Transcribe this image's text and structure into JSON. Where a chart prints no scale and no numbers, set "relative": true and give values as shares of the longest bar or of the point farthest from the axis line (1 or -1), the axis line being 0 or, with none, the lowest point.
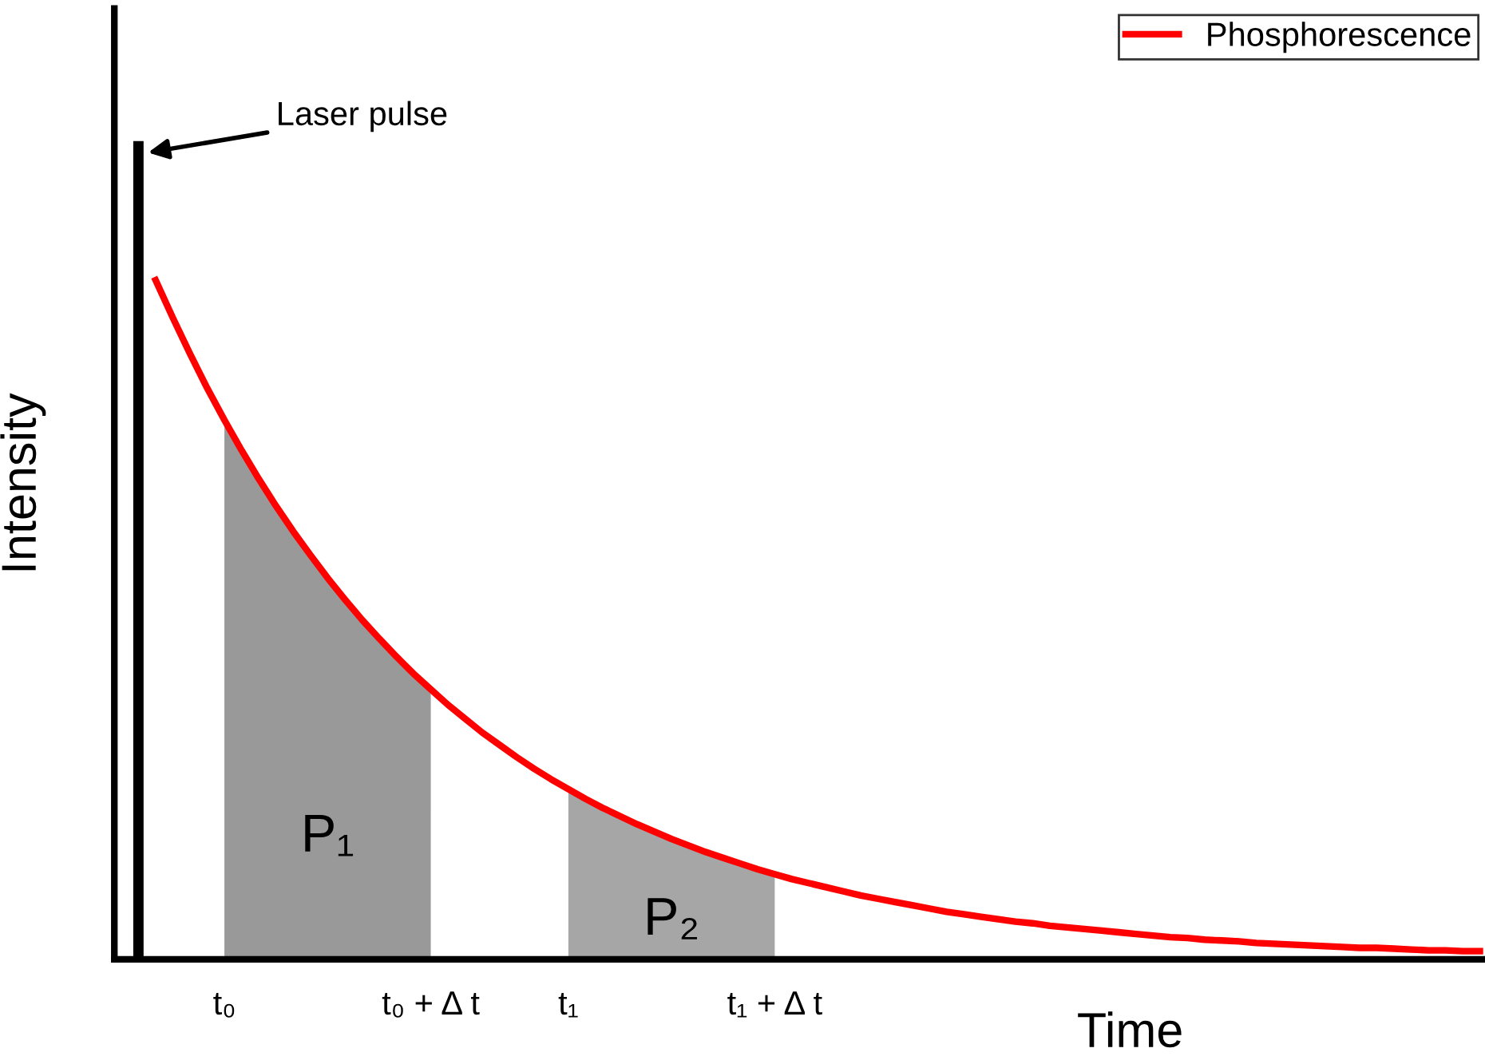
{
  "chart_data": {
    "type": "line",
    "relative": true,
    "xlabel": "Time",
    "ylabel": "Intensity",
    "legend": "top right",
    "categories": [
      null,
      null,
      null,
      null,
      null,
      "t₀",
      null,
      null,
      null,
      null,
      null,
      null,
      null,
      null,
      null,
      null,
      null,
      "t₀ + Δ t",
      null,
      null,
      null,
      null,
      null,
      null,
      null,
      "t₁",
      null,
      null,
      null,
      null,
      null,
      null,
      null,
      null,
      null,
      null,
      null,
      "t₁ + Δ t",
      null,
      null,
      null,
      null,
      null,
      null,
      null,
      null,
      null,
      null,
      null,
      null,
      null,
      null,
      null,
      null,
      null,
      null,
      null,
      null,
      null,
      null,
      null,
      null,
      null,
      null,
      null,
      null,
      null,
      null,
      null,
      null,
      null,
      null,
      null,
      null,
      null,
      null,
      null,
      null,
      null
    ],
    "series": [
      {
        "type": "area",
        "color": "#999999",
        "values": [
          null,
          null,
          null,
          null,
          null,
          0.659,
          0.622,
          0.587,
          0.554,
          0.523,
          0.494,
          0.466,
          0.44,
          0.415,
          0.392,
          0.37,
          0.349,
          0.33,
          null,
          null,
          null,
          null,
          null,
          null,
          null,
          null,
          null,
          null,
          null,
          null,
          null,
          null,
          null,
          null,
          null,
          null,
          null,
          null,
          null,
          null,
          null,
          null,
          null,
          null,
          null,
          null,
          null,
          null,
          null,
          null,
          null,
          null,
          null,
          null,
          null,
          null,
          null,
          null,
          null,
          null,
          null,
          null,
          null,
          null,
          null,
          null,
          null,
          null,
          null,
          null,
          null,
          null,
          null,
          null,
          null,
          null,
          null,
          null,
          null
        ]
      },
      {
        "type": "area",
        "color": "#a6a6a6",
        "values": [
          null,
          null,
          null,
          null,
          null,
          null,
          null,
          null,
          null,
          null,
          null,
          null,
          null,
          null,
          null,
          null,
          null,
          null,
          null,
          null,
          null,
          null,
          null,
          null,
          null,
          0.208,
          0.196,
          0.185,
          0.175,
          0.165,
          0.156,
          0.147,
          0.139,
          0.131,
          0.124,
          0.117,
          0.11,
          0.104,
          null,
          null,
          null,
          null,
          null,
          null,
          null,
          null,
          null,
          null,
          null,
          null,
          null,
          null,
          null,
          null,
          null,
          null,
          null,
          null,
          null,
          null,
          null,
          null,
          null,
          null,
          null,
          null,
          null,
          null,
          null,
          null,
          null,
          null,
          null,
          null,
          null,
          null,
          null,
          null,
          null
        ]
      },
      {
        "type": "bar",
        "color": "#000000",
        "values": [
          1.0,
          null,
          null,
          null,
          null,
          null,
          null,
          null,
          null,
          null,
          null,
          null,
          null,
          null,
          null,
          null,
          null,
          null,
          null,
          null,
          null,
          null,
          null,
          null,
          null,
          null,
          null,
          null,
          null,
          null,
          null,
          null,
          null,
          null,
          null,
          null,
          null,
          null,
          null,
          null,
          null,
          null,
          null,
          null,
          null,
          null,
          null,
          null,
          null,
          null,
          null,
          null,
          null,
          null,
          null,
          null,
          null,
          null,
          null,
          null,
          null,
          null,
          null,
          null,
          null,
          null,
          null,
          null,
          null,
          null,
          null,
          null,
          null,
          null,
          null,
          null,
          null,
          null,
          null
        ]
      },
      {
        "name": "Phosphorescence",
        "color": "#ff0000",
        "values": [
          null,
          0.83,
          0.784,
          0.74,
          0.698,
          0.659,
          0.622,
          0.587,
          0.554,
          0.523,
          0.494,
          0.466,
          0.44,
          0.415,
          0.392,
          0.37,
          0.349,
          0.33,
          0.311,
          0.294,
          0.277,
          0.262,
          0.247,
          0.233,
          0.22,
          0.208,
          0.196,
          0.185,
          0.175,
          0.165,
          0.156,
          0.147,
          0.139,
          0.131,
          0.124,
          0.117,
          0.11,
          0.104,
          0.098,
          0.093,
          0.088,
          0.083,
          0.078,
          0.074,
          0.07,
          0.066,
          0.062,
          0.058,
          0.055,
          0.052,
          0.049,
          0.046,
          0.044,
          0.041,
          0.039,
          0.037,
          0.035,
          0.033,
          0.031,
          0.029,
          0.027,
          0.026,
          0.024,
          0.023,
          0.022,
          0.02,
          0.019,
          0.018,
          0.017,
          0.016,
          0.015,
          0.014,
          0.014,
          0.013,
          0.012,
          0.011,
          0.011,
          0.01,
          0.01
        ]
      }
    ],
    "annotations": [
      "Laser pulse",
      "P₁",
      "P₂"
    ]
  }
}
